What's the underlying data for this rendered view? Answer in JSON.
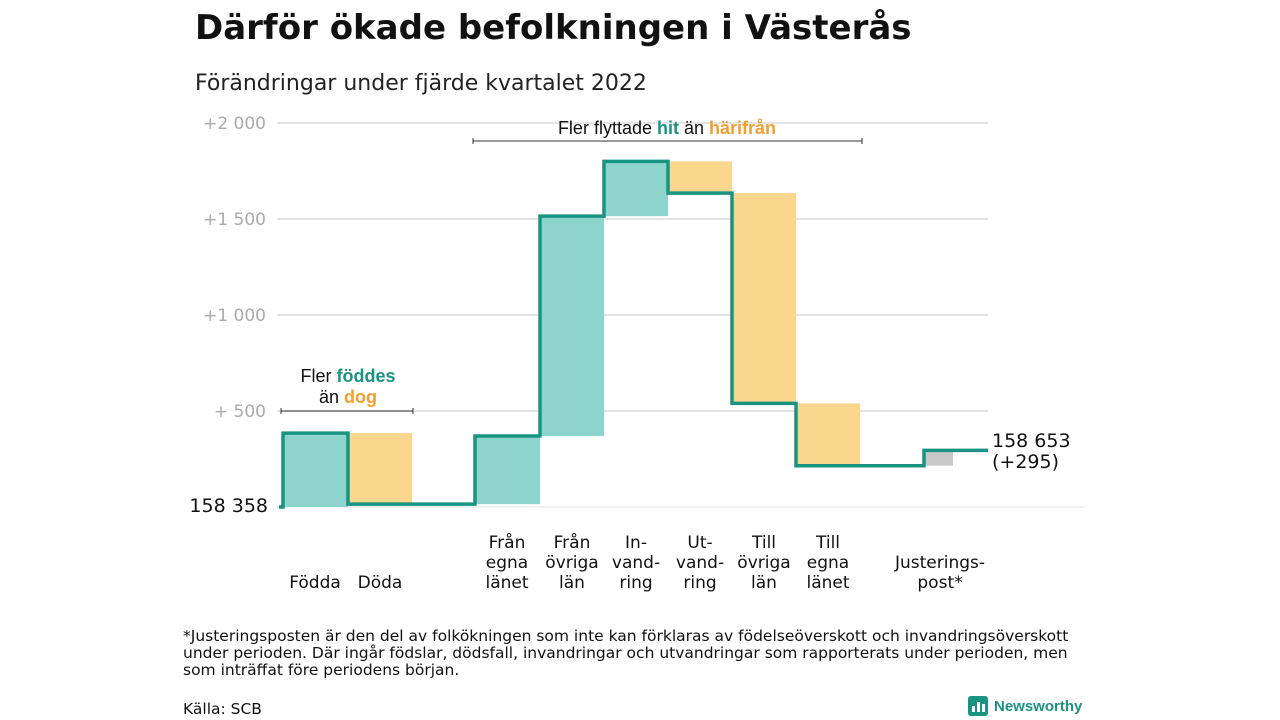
{
  "title": "Därför ökade befolkningen i Västerås",
  "subtitle": "Förändringar under fjärde kvartalet 2022",
  "chart_data": {
    "type": "waterfall",
    "y_ticks": [
      "+2 000",
      "+1 500",
      "+1 000",
      "+ 500"
    ],
    "ylim": [
      0,
      2000
    ],
    "start_label": "158 358",
    "end_label_line1": "158 653",
    "end_label_line2": "(+295)",
    "steps": [
      {
        "label_lines": [
          "Födda"
        ],
        "from": 0,
        "to": 385,
        "kind": "in"
      },
      {
        "label_lines": [
          "Döda"
        ],
        "from": 385,
        "to": 15,
        "kind": "out"
      },
      {
        "label_lines": [
          "Från",
          "egna",
          "länet"
        ],
        "from": 15,
        "to": 370,
        "kind": "in"
      },
      {
        "label_lines": [
          "Från",
          "övriga",
          "län"
        ],
        "from": 370,
        "to": 1515,
        "kind": "in"
      },
      {
        "label_lines": [
          "In-",
          "vand-",
          "ring"
        ],
        "from": 1515,
        "to": 1800,
        "kind": "in"
      },
      {
        "label_lines": [
          "Ut-",
          "vand-",
          "ring"
        ],
        "from": 1800,
        "to": 1635,
        "kind": "out"
      },
      {
        "label_lines": [
          "Till",
          "övriga",
          "län"
        ],
        "from": 1635,
        "to": 540,
        "kind": "out"
      },
      {
        "label_lines": [
          "Till",
          "egna",
          "länet"
        ],
        "from": 540,
        "to": 215,
        "kind": "out"
      },
      {
        "label_lines": [
          "Justerings-",
          "post*"
        ],
        "from": 215,
        "to": 295,
        "kind": "adjust"
      }
    ],
    "annotations": {
      "birth": {
        "prefix": "Fler ",
        "highlight1": "föddes",
        "mid": "än ",
        "highlight2": "dog"
      },
      "migration": {
        "prefix": "Fler flyttade ",
        "highlight1": "hit",
        "mid": " än ",
        "highlight2": "härifrån"
      }
    },
    "colors": {
      "in_fill": "#8dd5cc",
      "out_fill": "#fad68e",
      "adjust_fill": "#c8c8c8",
      "line": "#1a9482",
      "highlight_in": "#1a9482",
      "highlight_out": "#f0a030",
      "grid": "#dcdcdc",
      "tick": "#aaaaaa"
    }
  },
  "footnote": "*Justeringsposten är den del av folkökningen som inte kan förklaras av födelseöverskott och invandringsöverskott under perioden. Där ingår födslar, dödsfall, invandringar och utvandringar som rapporterats under perioden, men som inträffat före periodens början.",
  "source": "Källa: SCB",
  "brand": "Newsworthy"
}
